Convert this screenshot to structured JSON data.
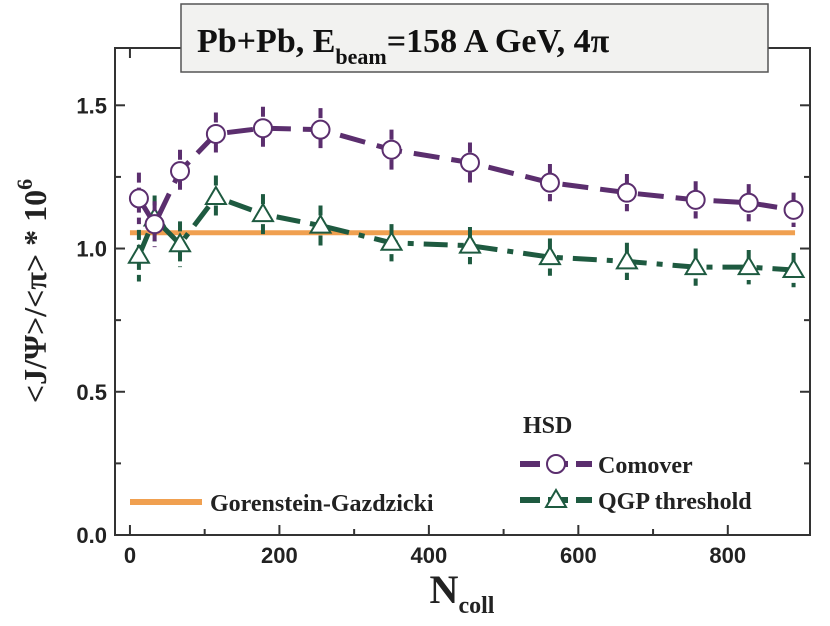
{
  "chart_data": {
    "type": "line",
    "title": {
      "main": "Pb+Pb, E",
      "subscript": "beam",
      "rest": "=158 A GeV, 4π"
    },
    "xlabel": {
      "main": "N",
      "subscript": "coll"
    },
    "ylabel": {
      "main": "<J/Ψ>/<π> * 10",
      "superscript": "6"
    },
    "xlim": [
      -20,
      910
    ],
    "ylim": [
      0.0,
      1.7
    ],
    "xticks": [
      0,
      200,
      400,
      600,
      800
    ],
    "xtick_labels": [
      "0",
      "200",
      "400",
      "600",
      "800"
    ],
    "yticks": [
      0.0,
      0.5,
      1.0,
      1.5
    ],
    "ytick_labels": [
      "0.0",
      "0.5",
      "1.0",
      "1.5"
    ],
    "legend_header": "HSD",
    "series": [
      {
        "name": "Comover",
        "color": "#5b2e6e",
        "marker": "circle",
        "line": "dashed",
        "x": [
          12,
          33,
          67,
          115,
          178,
          255,
          350,
          455,
          562,
          665,
          757,
          828,
          888
        ],
        "y": [
          1.175,
          1.085,
          1.27,
          1.4,
          1.42,
          1.415,
          1.345,
          1.3,
          1.23,
          1.195,
          1.17,
          1.16,
          1.135
        ],
        "err": [
          0.09,
          0.08,
          0.075,
          0.075,
          0.075,
          0.075,
          0.07,
          0.07,
          0.065,
          0.065,
          0.065,
          0.065,
          0.06
        ]
      },
      {
        "name": "QGP threshold",
        "color": "#1e5a40",
        "marker": "triangle",
        "line": "dashdot",
        "x": [
          12,
          33,
          67,
          115,
          178,
          255,
          350,
          455,
          562,
          665,
          757,
          828,
          888
        ],
        "y": [
          0.975,
          1.105,
          1.015,
          1.18,
          1.12,
          1.08,
          1.02,
          1.01,
          0.97,
          0.955,
          0.935,
          0.935,
          0.925
        ],
        "err": [
          0.09,
          0.08,
          0.08,
          0.075,
          0.07,
          0.07,
          0.065,
          0.065,
          0.065,
          0.065,
          0.065,
          0.06,
          0.06
        ]
      },
      {
        "name": "Gorenstein-Gazdzicki",
        "color": "#f0a050",
        "marker": "none",
        "line": "solid",
        "x": [
          0,
          890
        ],
        "y": [
          1.055,
          1.055
        ]
      }
    ]
  }
}
